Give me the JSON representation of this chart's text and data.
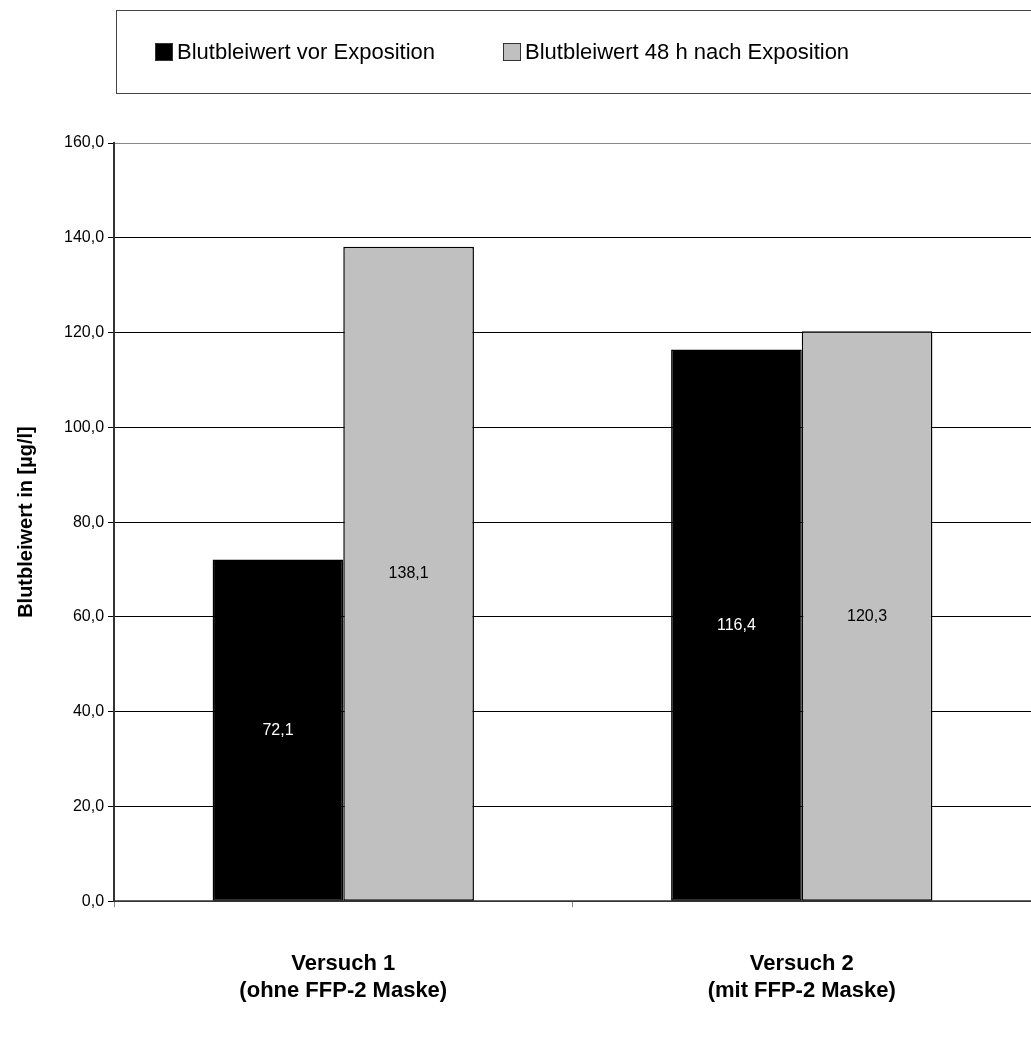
{
  "chart_data": {
    "type": "bar",
    "ylabel": "Blutbleiwert in [µg/l]",
    "categories": [
      "Versuch 1\n(ohne FFP-2 Maske)",
      "Versuch 2\n(mit FFP-2 Maske)"
    ],
    "series": [
      {
        "name": "Blutbleiwert vor Exposition",
        "color": "#000000",
        "values": [
          72.1,
          116.4
        ],
        "value_labels": [
          "72,1",
          "116,4"
        ]
      },
      {
        "name": "Blutbleiwert 48 h nach Exposition",
        "color": "#c0c0c0",
        "values": [
          138.1,
          120.3
        ],
        "value_labels": [
          "138,1",
          "120,3"
        ]
      }
    ],
    "ylim": [
      0,
      160
    ],
    "yticks": [
      {
        "value": 0,
        "label": "0,0"
      },
      {
        "value": 20,
        "label": "20,0"
      },
      {
        "value": 40,
        "label": "40,0"
      },
      {
        "value": 60,
        "label": "60,0"
      },
      {
        "value": 80,
        "label": "80,0"
      },
      {
        "value": 100,
        "label": "100,0"
      },
      {
        "value": 120,
        "label": "120,0"
      },
      {
        "value": 140,
        "label": "140,0"
      },
      {
        "value": 160,
        "label": "160,0"
      }
    ],
    "grid": "y",
    "legend": "top"
  }
}
